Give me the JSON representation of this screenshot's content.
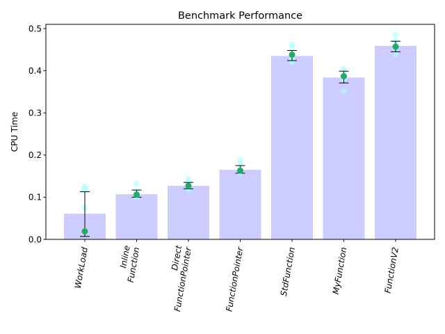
{
  "chart_data": {
    "type": "bar",
    "title": "Benchmark Performance",
    "xlabel": "",
    "ylabel": "CPU Time",
    "ylim": [
      0,
      0.51
    ],
    "yticks": [
      "0.0",
      "0.1",
      "0.2",
      "0.3",
      "0.4",
      "0.5"
    ],
    "ytick_values": [
      0.0,
      0.1,
      0.2,
      0.3,
      0.4,
      0.5
    ],
    "categories": [
      [
        "WorkLoad"
      ],
      [
        "Inline",
        "Function"
      ],
      [
        "Direct",
        "FunctionPointer"
      ],
      [
        "FunctionPointer"
      ],
      [
        "StdFunction"
      ],
      [
        "MyFunction"
      ],
      [
        "FunctionV2"
      ]
    ],
    "values": [
      0.061,
      0.107,
      0.127,
      0.165,
      0.435,
      0.384,
      0.459
    ],
    "means": [
      0.019,
      0.106,
      0.127,
      0.163,
      0.438,
      0.387,
      0.457
    ],
    "error_low": [
      0.007,
      0.1,
      0.12,
      0.157,
      0.424,
      0.371,
      0.445
    ],
    "error_high": [
      0.113,
      0.117,
      0.135,
      0.175,
      0.448,
      0.399,
      0.47
    ],
    "samples": [
      [
        0.125,
        0.12,
        0.118,
        0.075
      ],
      [
        0.132,
        0.108,
        0.1,
        0.115
      ],
      [
        0.143,
        0.136,
        0.118,
        0.125
      ],
      [
        0.188,
        0.18,
        0.158,
        0.166
      ],
      [
        0.462,
        0.455,
        0.42,
        0.43
      ],
      [
        0.405,
        0.398,
        0.352,
        0.38
      ],
      [
        0.485,
        0.47,
        0.44,
        0.455
      ]
    ],
    "colors": {
      "bar": "#ccccff",
      "sample": "#aaffff",
      "mean": "#22aa66",
      "error": "#000000"
    },
    "grid": false,
    "legend": "none"
  }
}
